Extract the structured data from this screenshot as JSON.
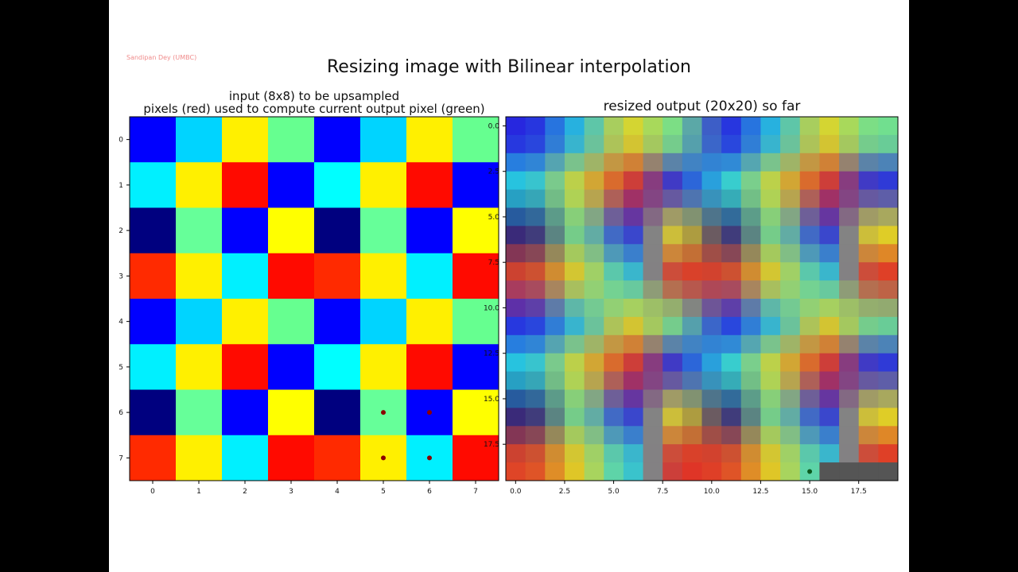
{
  "credit": "Sandipan Dey (UMBC)",
  "suptitle": "Resizing image with Bilinear interpolation",
  "chart_data": [
    {
      "type": "heatmap",
      "title_line1": "input (8x8) to be upsampled",
      "title_line2": "pixels (red) used to compute current output pixel (green)",
      "xticks": [
        "0",
        "1",
        "2",
        "3",
        "4",
        "5",
        "6",
        "7"
      ],
      "yticks": [
        "0",
        "1",
        "2",
        "3",
        "4",
        "5",
        "6",
        "7"
      ],
      "colors": [
        [
          "#0000ff",
          "#00d4ff",
          "#fff000",
          "#66ff90",
          "#0000ff",
          "#00d4ff",
          "#fff000",
          "#66ff90"
        ],
        [
          "#00f0ff",
          "#fff000",
          "#ff0a00",
          "#0000ff",
          "#00ffff",
          "#fff000",
          "#ff0a00",
          "#0000ff"
        ],
        [
          "#00007f",
          "#66ff99",
          "#0000ff",
          "#ffff00",
          "#00007f",
          "#66ff99",
          "#0000ff",
          "#ffff00"
        ],
        [
          "#ff2a00",
          "#fff000",
          "#00f0ff",
          "#ff0a00",
          "#ff2a00",
          "#fff000",
          "#00f0ff",
          "#ff0a00"
        ],
        [
          "#0000ff",
          "#00d4ff",
          "#fff000",
          "#66ff90",
          "#0000ff",
          "#00d4ff",
          "#fff000",
          "#66ff90"
        ],
        [
          "#00f0ff",
          "#fff000",
          "#ff0a00",
          "#0000ff",
          "#00ffff",
          "#fff000",
          "#ff0a00",
          "#0000ff"
        ],
        [
          "#00007f",
          "#66ff99",
          "#0000ff",
          "#ffff00",
          "#00007f",
          "#66ff99",
          "#0000ff",
          "#ffff00"
        ],
        [
          "#ff2a00",
          "#fff000",
          "#00f0ff",
          "#ff0a00",
          "#ff2a00",
          "#fff000",
          "#00f0ff",
          "#ff0a00"
        ]
      ],
      "highlighted_pixels_red": [
        [
          6,
          5
        ],
        [
          6,
          6
        ],
        [
          7,
          5
        ],
        [
          7,
          6
        ]
      ]
    },
    {
      "type": "heatmap",
      "title": "resized output (20x20) so far",
      "size": [
        20,
        20
      ],
      "xticks": [
        "0.0",
        "2.5",
        "5.0",
        "7.5",
        "10.0",
        "12.5",
        "15.0",
        "17.5"
      ],
      "yticks": [
        "0.0",
        "2.5",
        "5.0",
        "7.5",
        "10.0",
        "12.5",
        "15.0",
        "17.5"
      ],
      "filled_pixels": 396,
      "current_pixel_green": [
        19,
        15
      ],
      "unfilled_color": "#555555"
    }
  ]
}
